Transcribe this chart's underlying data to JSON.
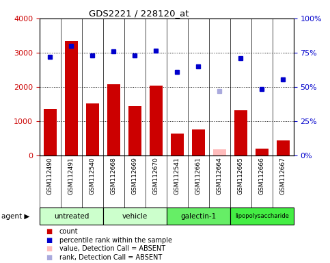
{
  "title": "GDS2221 / 228120_at",
  "samples": [
    "GSM112490",
    "GSM112491",
    "GSM112540",
    "GSM112668",
    "GSM112669",
    "GSM112670",
    "GSM112541",
    "GSM112661",
    "GSM112664",
    "GSM112665",
    "GSM112666",
    "GSM112667"
  ],
  "counts": [
    1350,
    3340,
    1520,
    2080,
    1440,
    2040,
    640,
    760,
    null,
    1310,
    200,
    430
  ],
  "absent_counts": [
    null,
    null,
    null,
    null,
    null,
    null,
    null,
    null,
    180,
    null,
    null,
    null
  ],
  "percentile_ranks": [
    2870,
    3200,
    2920,
    3040,
    2920,
    3050,
    2440,
    2590,
    null,
    2830,
    1930,
    2210
  ],
  "absent_ranks": [
    null,
    null,
    null,
    null,
    null,
    null,
    null,
    null,
    1870,
    null,
    null,
    null
  ],
  "agents": [
    {
      "label": "untreated",
      "start": 0,
      "end": 3,
      "color": "#ccffcc"
    },
    {
      "label": "vehicle",
      "start": 3,
      "end": 6,
      "color": "#ccffcc"
    },
    {
      "label": "galectin-1",
      "start": 6,
      "end": 9,
      "color": "#66ee66"
    },
    {
      "label": "lipopolysaccharide",
      "start": 9,
      "end": 12,
      "color": "#44ee44"
    }
  ],
  "ylim_left": [
    0,
    4000
  ],
  "ylim_right": [
    0,
    100
  ],
  "bar_color": "#cc0000",
  "absent_bar_color": "#ffbbbb",
  "dot_color": "#0000cc",
  "absent_dot_color": "#aaaadd",
  "background_color": "#ffffff",
  "plot_bg_color": "#ffffff",
  "sample_bg_color": "#cccccc",
  "ylabel_left_color": "#cc0000",
  "ylabel_right_color": "#0000cc",
  "yticks_left": [
    0,
    1000,
    2000,
    3000,
    4000
  ],
  "yticks_right": [
    0,
    25,
    50,
    75,
    100
  ],
  "ytick_labels_left": [
    "0",
    "1000",
    "2000",
    "3000",
    "4000"
  ],
  "ytick_labels_right": [
    "0%",
    "25%",
    "50%",
    "75%",
    "100%"
  ]
}
